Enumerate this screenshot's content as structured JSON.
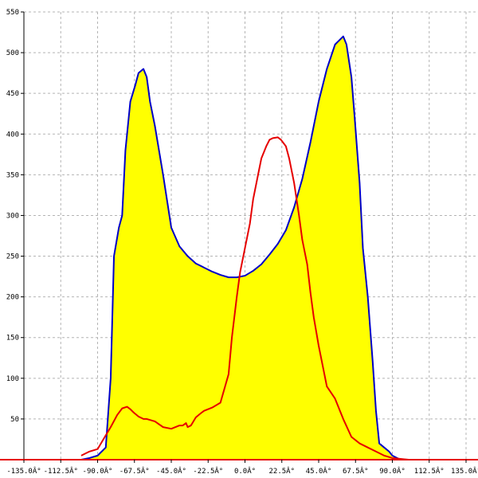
{
  "chart_data": {
    "type": "line",
    "title": "",
    "xlabel": "",
    "ylabel": "",
    "xlim": [
      -135,
      135
    ],
    "ylim": [
      0,
      550
    ],
    "grid": true,
    "legend": "none",
    "x_ticks": [
      {
        "value": -135,
        "label": "-135.0Â°"
      },
      {
        "value": -112.5,
        "label": "-112.5Â°"
      },
      {
        "value": -90,
        "label": "-90.0Â°"
      },
      {
        "value": -67.5,
        "label": "-67.5Â°"
      },
      {
        "value": -45,
        "label": "-45.0Â°"
      },
      {
        "value": -22.5,
        "label": "-22.5Â°"
      },
      {
        "value": 0,
        "label": "0.0Â°"
      },
      {
        "value": 22.5,
        "label": "22.5Â°"
      },
      {
        "value": 45,
        "label": "45.0Â°"
      },
      {
        "value": 67.5,
        "label": "67.5Â°"
      },
      {
        "value": 90,
        "label": "90.0Â°"
      },
      {
        "value": 112.5,
        "label": "112.5Â°"
      },
      {
        "value": 135,
        "label": "135.0Â°"
      }
    ],
    "y_ticks": [
      {
        "value": 50,
        "label": "50"
      },
      {
        "value": 100,
        "label": "100"
      },
      {
        "value": 150,
        "label": "150"
      },
      {
        "value": 200,
        "label": "200"
      },
      {
        "value": 250,
        "label": "250"
      },
      {
        "value": 300,
        "label": "300"
      },
      {
        "value": 350,
        "label": "350"
      },
      {
        "value": 400,
        "label": "400"
      },
      {
        "value": 450,
        "label": "450"
      },
      {
        "value": 500,
        "label": "500"
      },
      {
        "value": 550,
        "label": "550"
      }
    ],
    "series": [
      {
        "color": "#0000c8",
        "fill": "#ffff00",
        "x": [
          -100,
          -95,
          -90,
          -85,
          -82,
          -80,
          -77,
          -75,
          -73,
          -70,
          -67,
          -65,
          -62,
          -60,
          -58,
          -55,
          -50,
          -45,
          -40,
          -35,
          -30,
          -25,
          -20,
          -15,
          -10,
          -5,
          0,
          5,
          10,
          15,
          20,
          25,
          30,
          35,
          40,
          45,
          50,
          55,
          60,
          62,
          65,
          67,
          70,
          72,
          75,
          78,
          80,
          82,
          85,
          88,
          90,
          93,
          95,
          100
        ],
        "y": [
          0,
          2,
          5,
          15,
          100,
          250,
          285,
          300,
          380,
          440,
          460,
          475,
          480,
          470,
          440,
          410,
          350,
          285,
          262,
          250,
          241,
          236,
          231,
          227,
          224,
          224,
          226,
          232,
          240,
          252,
          265,
          282,
          310,
          345,
          390,
          440,
          480,
          510,
          520,
          510,
          470,
          420,
          340,
          260,
          200,
          120,
          60,
          20,
          15,
          10,
          5,
          2,
          0,
          0
        ]
      },
      {
        "color": "#e60000",
        "fill": "",
        "x": [
          -100,
          -95,
          -90,
          -85,
          -82,
          -78,
          -75,
          -72,
          -70,
          -68,
          -65,
          -62,
          -60,
          -55,
          -50,
          -45,
          -40,
          -38,
          -36,
          -35,
          -33,
          -30,
          -27,
          -25,
          -20,
          -15,
          -10,
          -8,
          -5,
          -3,
          0,
          3,
          5,
          8,
          10,
          13,
          15,
          17,
          20,
          22,
          25,
          27,
          30,
          33,
          35,
          38,
          40,
          42,
          45,
          50,
          55,
          60,
          65,
          70,
          75,
          80,
          85,
          90,
          95,
          100
        ],
        "y": [
          5,
          10,
          13,
          30,
          40,
          55,
          63,
          65,
          62,
          58,
          53,
          50,
          50,
          47,
          40,
          38,
          42,
          42,
          45,
          40,
          42,
          52,
          57,
          60,
          64,
          70,
          105,
          150,
          200,
          230,
          260,
          290,
          320,
          350,
          370,
          385,
          393,
          395,
          396,
          393,
          385,
          370,
          340,
          300,
          270,
          240,
          205,
          175,
          140,
          90,
          75,
          50,
          28,
          20,
          15,
          10,
          5,
          2,
          1,
          0
        ]
      }
    ]
  }
}
